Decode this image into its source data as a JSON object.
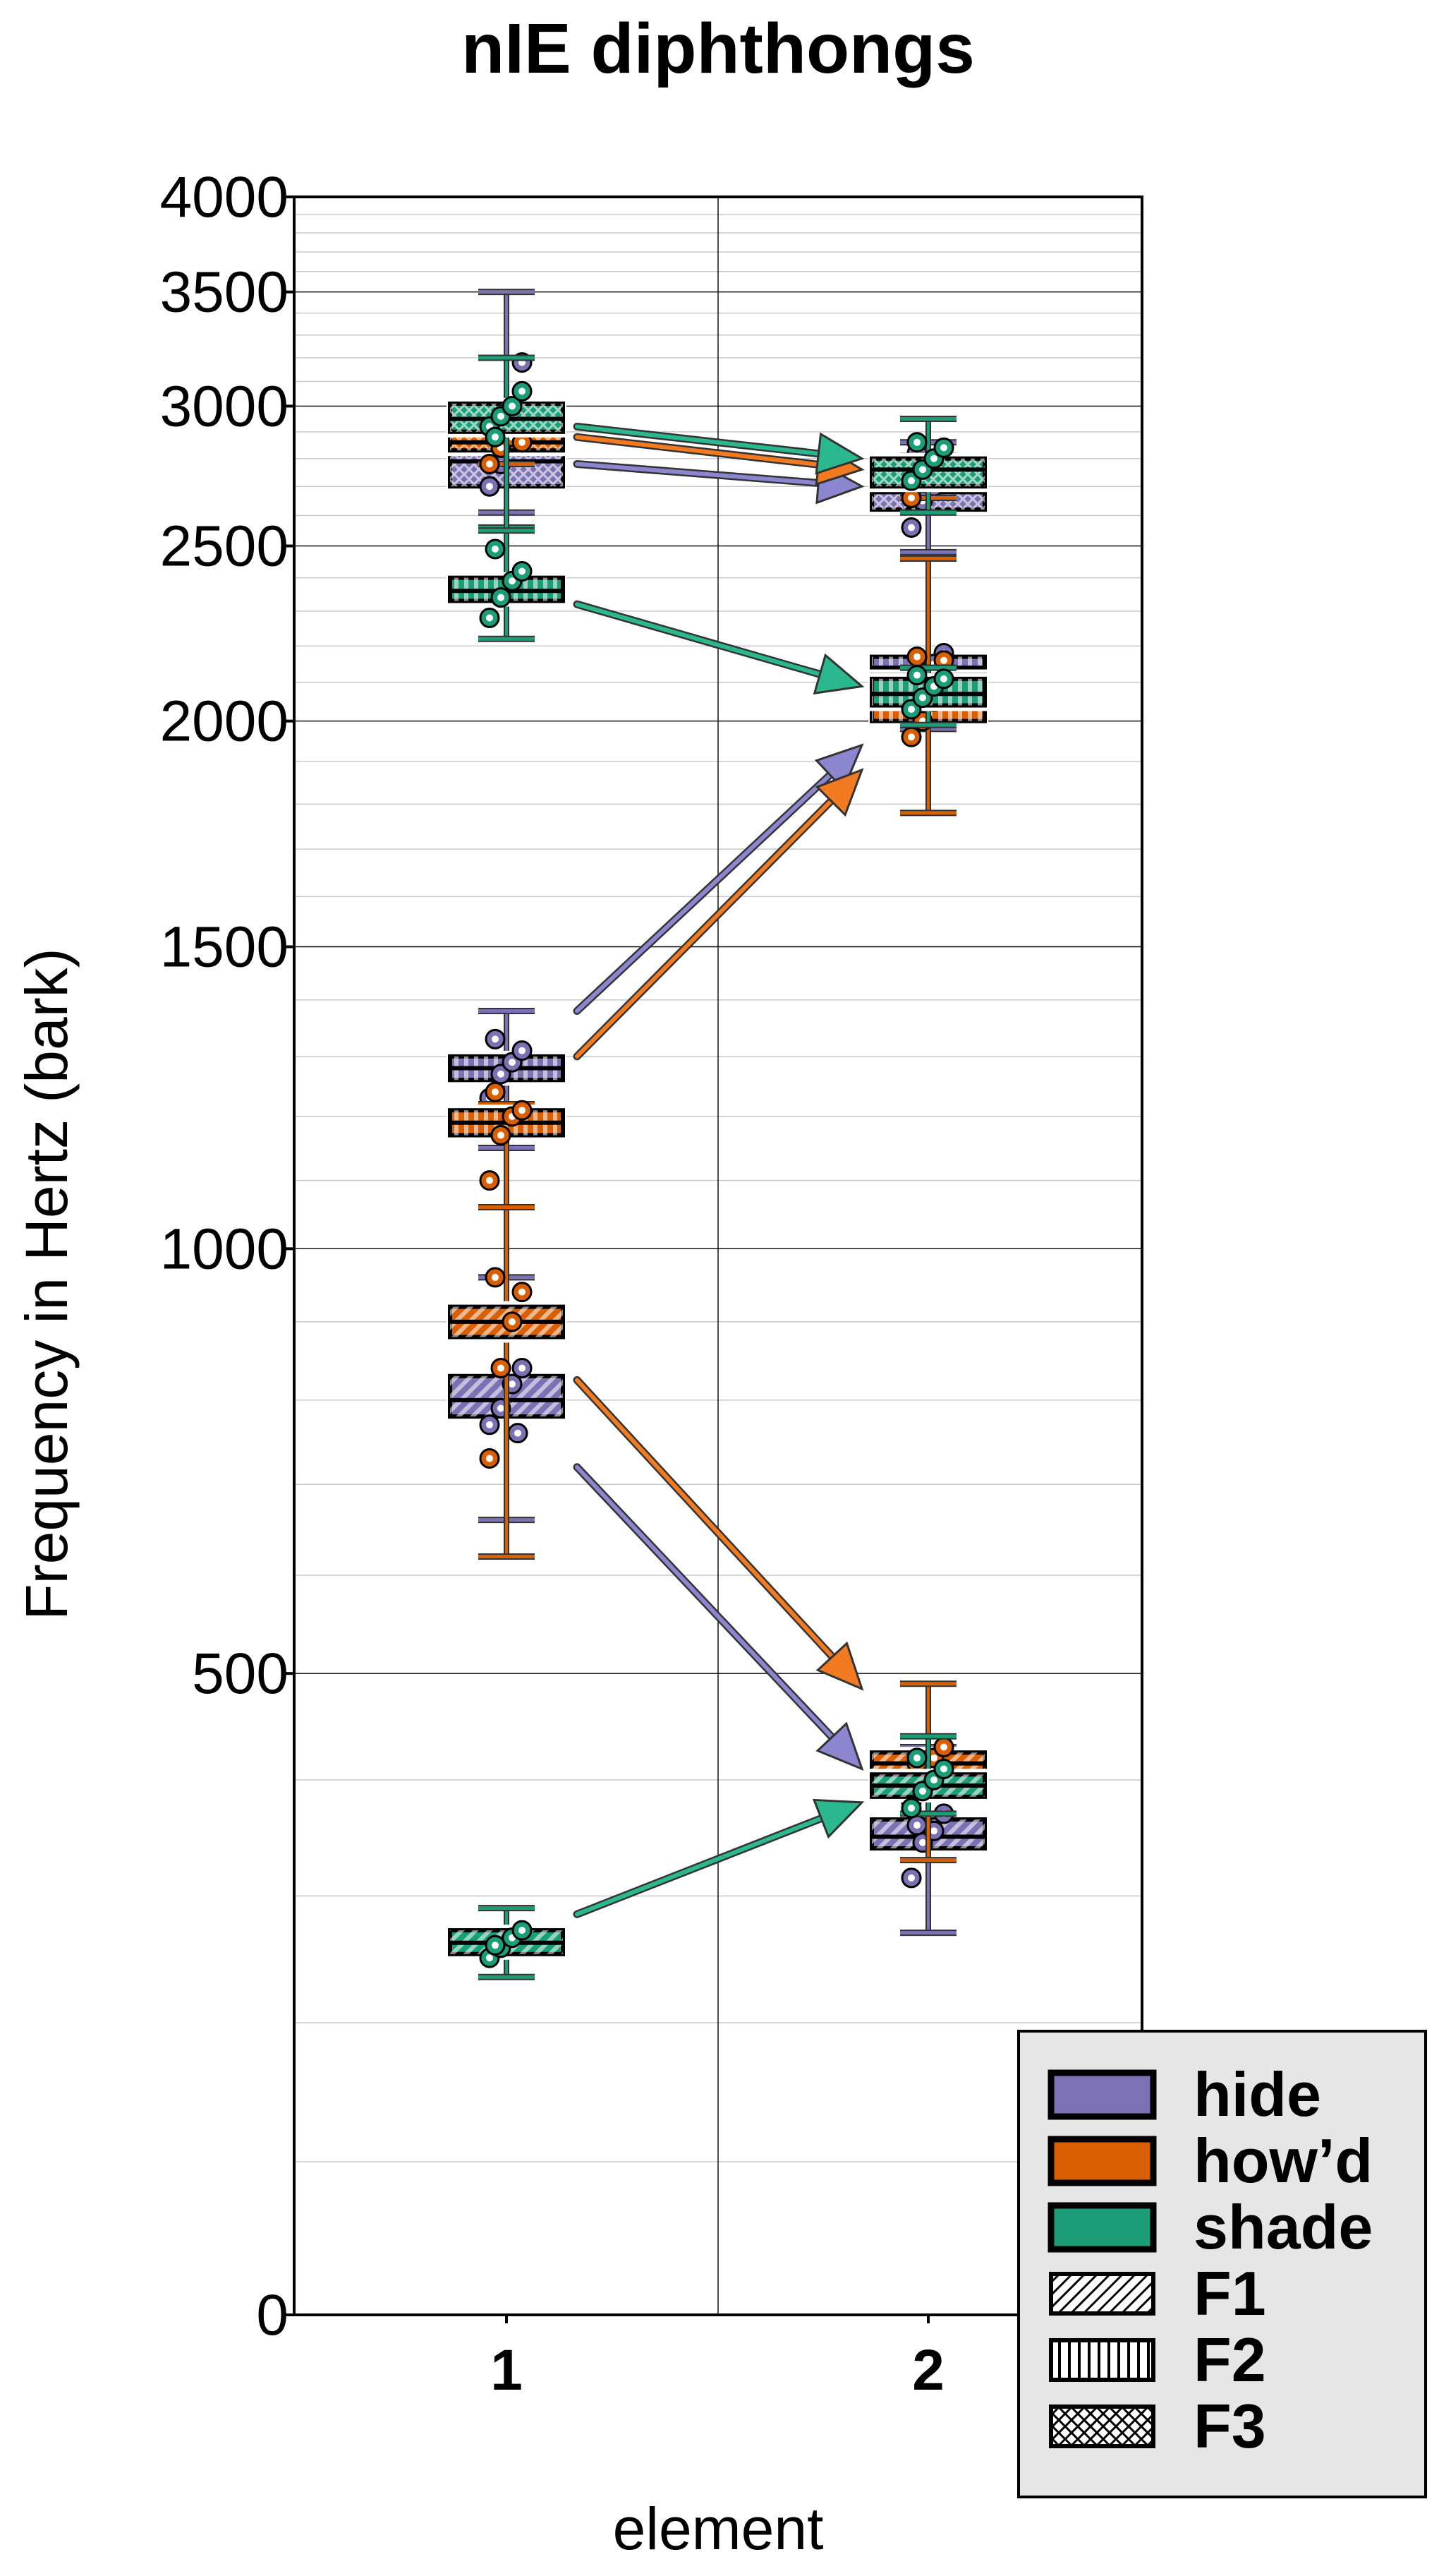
{
  "chart_data": {
    "type": "box",
    "title": "nIE diphthongs",
    "xlabel": "element",
    "ylabel": "Frequency in Hertz (bark)",
    "y_scale": "bark",
    "ylim": [
      0,
      4000
    ],
    "y_ticks": [
      0,
      500,
      1000,
      1500,
      2000,
      2500,
      3000,
      3500,
      4000
    ],
    "categories": [
      "1",
      "2"
    ],
    "grid": true,
    "legend_position": "bottom-right",
    "colors": {
      "hide": "#7b71b3",
      "how'd": "#d95f02",
      "shade": "#1b9e77"
    },
    "legend": [
      {
        "label": "hide",
        "kind": "color",
        "color": "#7b71b3"
      },
      {
        "label": "how’d",
        "kind": "color",
        "color": "#d95f02"
      },
      {
        "label": "shade",
        "kind": "color",
        "color": "#1b9e77"
      },
      {
        "label": "F1",
        "kind": "pattern",
        "pattern": "diagonal"
      },
      {
        "label": "F2",
        "kind": "pattern",
        "pattern": "vertical"
      },
      {
        "label": "F3",
        "kind": "pattern",
        "pattern": "crosshatch"
      }
    ],
    "series": [
      {
        "vowel": "hide",
        "formant": "F1",
        "color": "#7b71b3",
        "pattern": "diagonal",
        "boxes": [
          {
            "element": "1",
            "whisker_low": 660,
            "q1": 780,
            "median": 800,
            "q3": 830,
            "whisker_high": 960,
            "points": [
              770,
              790,
              820,
              840,
              900,
              760
            ]
          },
          {
            "element": "2",
            "whisker_low": 270,
            "q1": 340,
            "median": 350,
            "q3": 365,
            "whisker_high": 430,
            "points": [
              315,
              345,
              355,
              370,
              360
            ]
          }
        ]
      },
      {
        "vowel": "hide",
        "formant": "F2",
        "color": "#7b71b3",
        "pattern": "vertical",
        "boxes": [
          {
            "element": "1",
            "whisker_low": 1150,
            "q1": 1260,
            "median": 1280,
            "q3": 1300,
            "whisker_high": 1380,
            "points": [
              1230,
              1270,
              1290,
              1310,
              1330
            ]
          },
          {
            "element": "2",
            "whisker_low": 1980,
            "q1": 2100,
            "median": 2140,
            "q3": 2170,
            "whisker_high": 2460,
            "points": [
              2080,
              2120,
              2150,
              2180,
              2060
            ]
          }
        ]
      },
      {
        "vowel": "hide",
        "formant": "F3",
        "color": "#7b71b3",
        "pattern": "crosshatch",
        "boxes": [
          {
            "element": "1",
            "whisker_low": 2610,
            "q1": 2700,
            "median": 2790,
            "q3": 2840,
            "whisker_high": 3500,
            "points": [
              2700,
              2780,
              2850,
              3180,
              2920
            ]
          },
          {
            "element": "2",
            "whisker_low": 2480,
            "q1": 2620,
            "median": 2680,
            "q3": 2750,
            "whisker_high": 2860,
            "points": [
              2560,
              2650,
              2700,
              2780,
              2820
            ]
          }
        ]
      },
      {
        "vowel": "how'd",
        "formant": "F1",
        "color": "#d95f02",
        "pattern": "diagonal",
        "boxes": [
          {
            "element": "1",
            "whisker_low": 620,
            "q1": 880,
            "median": 900,
            "q3": 920,
            "whisker_high": 1060,
            "points": [
              730,
              840,
              900,
              940,
              960
            ]
          },
          {
            "element": "2",
            "whisker_low": 330,
            "q1": 405,
            "median": 415,
            "q3": 425,
            "whisker_high": 490,
            "points": [
              380,
              405,
              420,
              430,
              415
            ]
          }
        ]
      },
      {
        "vowel": "how'd",
        "formant": "F2",
        "color": "#d95f02",
        "pattern": "vertical",
        "boxes": [
          {
            "element": "1",
            "whisker_low": 1060,
            "q1": 1170,
            "median": 1190,
            "q3": 1210,
            "whisker_high": 1220,
            "points": [
              1100,
              1170,
              1200,
              1210,
              1240
            ]
          },
          {
            "element": "2",
            "whisker_low": 1780,
            "q1": 2000,
            "median": 2060,
            "q3": 2120,
            "whisker_high": 2460,
            "points": [
              1960,
              2000,
              2050,
              2160,
              2170
            ]
          }
        ]
      },
      {
        "vowel": "how'd",
        "formant": "F3",
        "color": "#d95f02",
        "pattern": "crosshatch",
        "boxes": [
          {
            "element": "1",
            "whisker_low": 2780,
            "q1": 2830,
            "median": 2860,
            "q3": 2900,
            "whisker_high": 2950,
            "points": [
              2780,
              2840,
              2880,
              2860,
              2900
            ]
          },
          {
            "element": "2",
            "whisker_low": 2660,
            "q1": 2720,
            "median": 2760,
            "q3": 2790,
            "whisker_high": 2810,
            "points": [
              2660,
              2720,
              2760,
              2780,
              2740
            ]
          }
        ]
      },
      {
        "vowel": "shade",
        "formant": "F1",
        "color": "#1b9e77",
        "pattern": "diagonal",
        "boxes": [
          {
            "element": "1",
            "whisker_low": 235,
            "q1": 253,
            "median": 262,
            "q3": 272,
            "whisker_high": 290,
            "points": [
              250,
              258,
              266,
              272,
              260
            ]
          },
          {
            "element": "2",
            "whisker_low": 370,
            "q1": 385,
            "median": 395,
            "q3": 405,
            "whisker_high": 440,
            "points": [
              375,
              390,
              400,
              410,
              420
            ]
          }
        ]
      },
      {
        "vowel": "shade",
        "formant": "F2",
        "color": "#1b9e77",
        "pattern": "vertical",
        "boxes": [
          {
            "element": "1",
            "whisker_low": 2220,
            "q1": 2330,
            "median": 2360,
            "q3": 2400,
            "whisker_high": 2560,
            "points": [
              2280,
              2340,
              2390,
              2420,
              2490
            ]
          },
          {
            "element": "2",
            "whisker_low": 1990,
            "q1": 2040,
            "median": 2070,
            "q3": 2110,
            "whisker_high": 2140,
            "points": [
              2030,
              2060,
              2090,
              2110,
              2120
            ]
          }
        ]
      },
      {
        "vowel": "shade",
        "formant": "F3",
        "color": "#1b9e77",
        "pattern": "crosshatch",
        "boxes": [
          {
            "element": "1",
            "whisker_low": 2550,
            "q1": 2900,
            "median": 2950,
            "q3": 3010,
            "whisker_high": 3200,
            "points": [
              2920,
              2960,
              3000,
              3060,
              2880
            ]
          },
          {
            "element": "2",
            "whisker_low": 2610,
            "q1": 2700,
            "median": 2760,
            "q3": 2800,
            "whisker_high": 2950,
            "points": [
              2720,
              2760,
              2800,
              2840,
              2860
            ]
          }
        ]
      }
    ],
    "arrows": [
      {
        "vowel": "hide",
        "formant": "F1",
        "from": 720,
        "to": 410,
        "color": "#8c86d0"
      },
      {
        "vowel": "hide",
        "formant": "F2",
        "from": 1380,
        "to": 1940,
        "color": "#8c86d0"
      },
      {
        "vowel": "hide",
        "formant": "F3",
        "from": 2780,
        "to": 2700,
        "color": "#8c86d0"
      },
      {
        "vowel": "how'd",
        "formant": "F1",
        "from": 825,
        "to": 485,
        "color": "#f27b22"
      },
      {
        "vowel": "how'd",
        "formant": "F2",
        "from": 1300,
        "to": 1880,
        "color": "#f27b22"
      },
      {
        "vowel": "how'd",
        "formant": "F3",
        "from": 2880,
        "to": 2760,
        "color": "#f27b22"
      },
      {
        "vowel": "shade",
        "formant": "F1",
        "from": 285,
        "to": 380,
        "color": "#2bb88e"
      },
      {
        "vowel": "shade",
        "formant": "F2",
        "from": 2320,
        "to": 2090,
        "color": "#2bb88e"
      },
      {
        "vowel": "shade",
        "formant": "F3",
        "from": 2920,
        "to": 2800,
        "color": "#2bb88e"
      }
    ]
  }
}
